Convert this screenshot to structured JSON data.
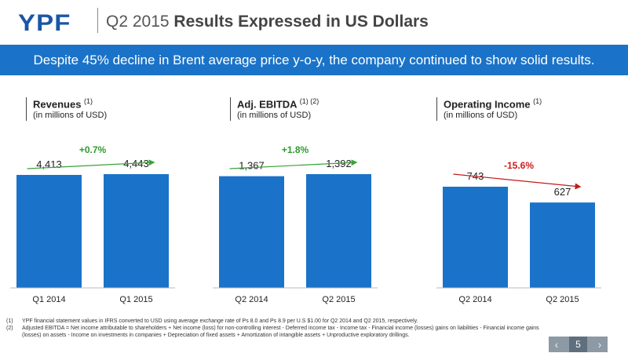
{
  "header": {
    "logo": "YPF",
    "title_prefix": "Q2 2015 ",
    "title_bold": "Results Expressed in US Dollars"
  },
  "banner": "Despite 45% decline in Brent average price y-o-y, the company continued to show solid results.",
  "colors": {
    "bar": "#1a73c8",
    "up": "#2e9b2e",
    "down": "#d11a1a",
    "arrow_up": "#3aa33a",
    "arrow_down": "#c21a1a"
  },
  "chart_data": [
    {
      "type": "bar",
      "title": "Revenues",
      "title_sup": "(1)",
      "subtitle": "(in millions of USD)",
      "categories": [
        "Q1 2014",
        "Q1 2015"
      ],
      "values": [
        4413,
        4443
      ],
      "value_labels": [
        "4,413",
        "4,443"
      ],
      "change": "+0.7%",
      "trend": "up"
    },
    {
      "type": "bar",
      "title": "Adj. EBITDA",
      "title_sup": "(1) (2)",
      "subtitle": "(in millions of USD)",
      "categories": [
        "Q2 2014",
        "Q2 2015"
      ],
      "values": [
        1367,
        1392
      ],
      "value_labels": [
        "1,367",
        "1,392"
      ],
      "change": "+1.8%",
      "trend": "up"
    },
    {
      "type": "bar",
      "title": "Operating Income",
      "title_sup": "(1)",
      "subtitle": "(in millions of USD)",
      "categories": [
        "Q2 2014",
        "Q2 2015"
      ],
      "values": [
        743,
        627
      ],
      "value_labels": [
        "743",
        "627"
      ],
      "change": "-15.6%",
      "trend": "down"
    }
  ],
  "footnotes": [
    {
      "num": "(1)",
      "text": "YPF financial statement values in IFRS converted to USD using average exchange rate of Ps 8.0 and Ps 8.9 per U.S $1.00 for Q2 2014 and Q2 2015, respectively."
    },
    {
      "num": "(2)",
      "text": "Adjusted EBITDA = Net income attributable to shareholders + Net income (loss) for non-controlling interest - Deferred income tax - Income tax - Financial income (losses) gains on liabilities - Financial income gains (losses) on assets - Income on investments in companies + Depreciation of fixed assets + Amortization of intangible assets + Unproductive exploratory drillings."
    }
  ],
  "pager": {
    "prev": "‹",
    "page": "5",
    "next": "›"
  }
}
